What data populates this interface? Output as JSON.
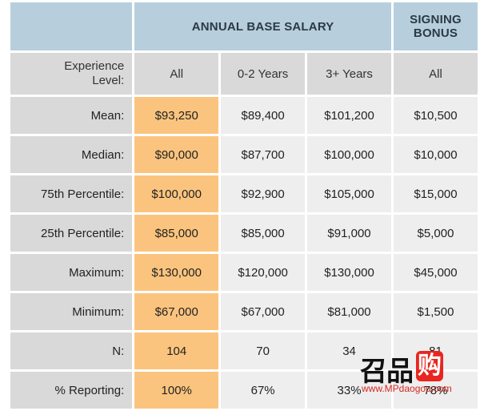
{
  "header": {
    "annual_base_salary": "ANNUAL BASE SALARY",
    "signing_bonus_line1": "SIGNING",
    "signing_bonus_line2": "BONUS"
  },
  "subheader": {
    "experience_line1": "Experience",
    "experience_line2": "Level:",
    "columns": [
      "All",
      "0-2 Years",
      "3+ Years",
      "All"
    ]
  },
  "rows": [
    {
      "label": "Mean:",
      "values": [
        "$93,250",
        "$89,400",
        "$101,200",
        "$10,500"
      ]
    },
    {
      "label": "Median:",
      "values": [
        "$90,000",
        "$87,700",
        "$100,000",
        "$10,000"
      ]
    },
    {
      "label": "75th Percentile:",
      "values": [
        "$100,000",
        "$92,900",
        "$105,000",
        "$15,000"
      ]
    },
    {
      "label": "25th Percentile:",
      "values": [
        "$85,000",
        "$85,000",
        "$91,000",
        "$5,000"
      ]
    },
    {
      "label": "Maximum:",
      "values": [
        "$130,000",
        "$120,000",
        "$130,000",
        "$45,000"
      ]
    },
    {
      "label": "Minimum:",
      "values": [
        "$67,000",
        "$67,000",
        "$81,000",
        "$1,500"
      ]
    },
    {
      "label": "N:",
      "values": [
        "104",
        "70",
        "34",
        "81"
      ]
    },
    {
      "label": "% Reporting:",
      "values": [
        "100%",
        "67%",
        "33%",
        "78%"
      ]
    }
  ],
  "watermark": {
    "text": "召品",
    "mark": "购",
    "url": "www.MPdaogou.com"
  },
  "colors": {
    "header_bg": "#b7cfdd",
    "label_bg": "#d9d9d9",
    "highlight_bg": "#fbc47e",
    "cell_bg": "#eeeeee"
  }
}
